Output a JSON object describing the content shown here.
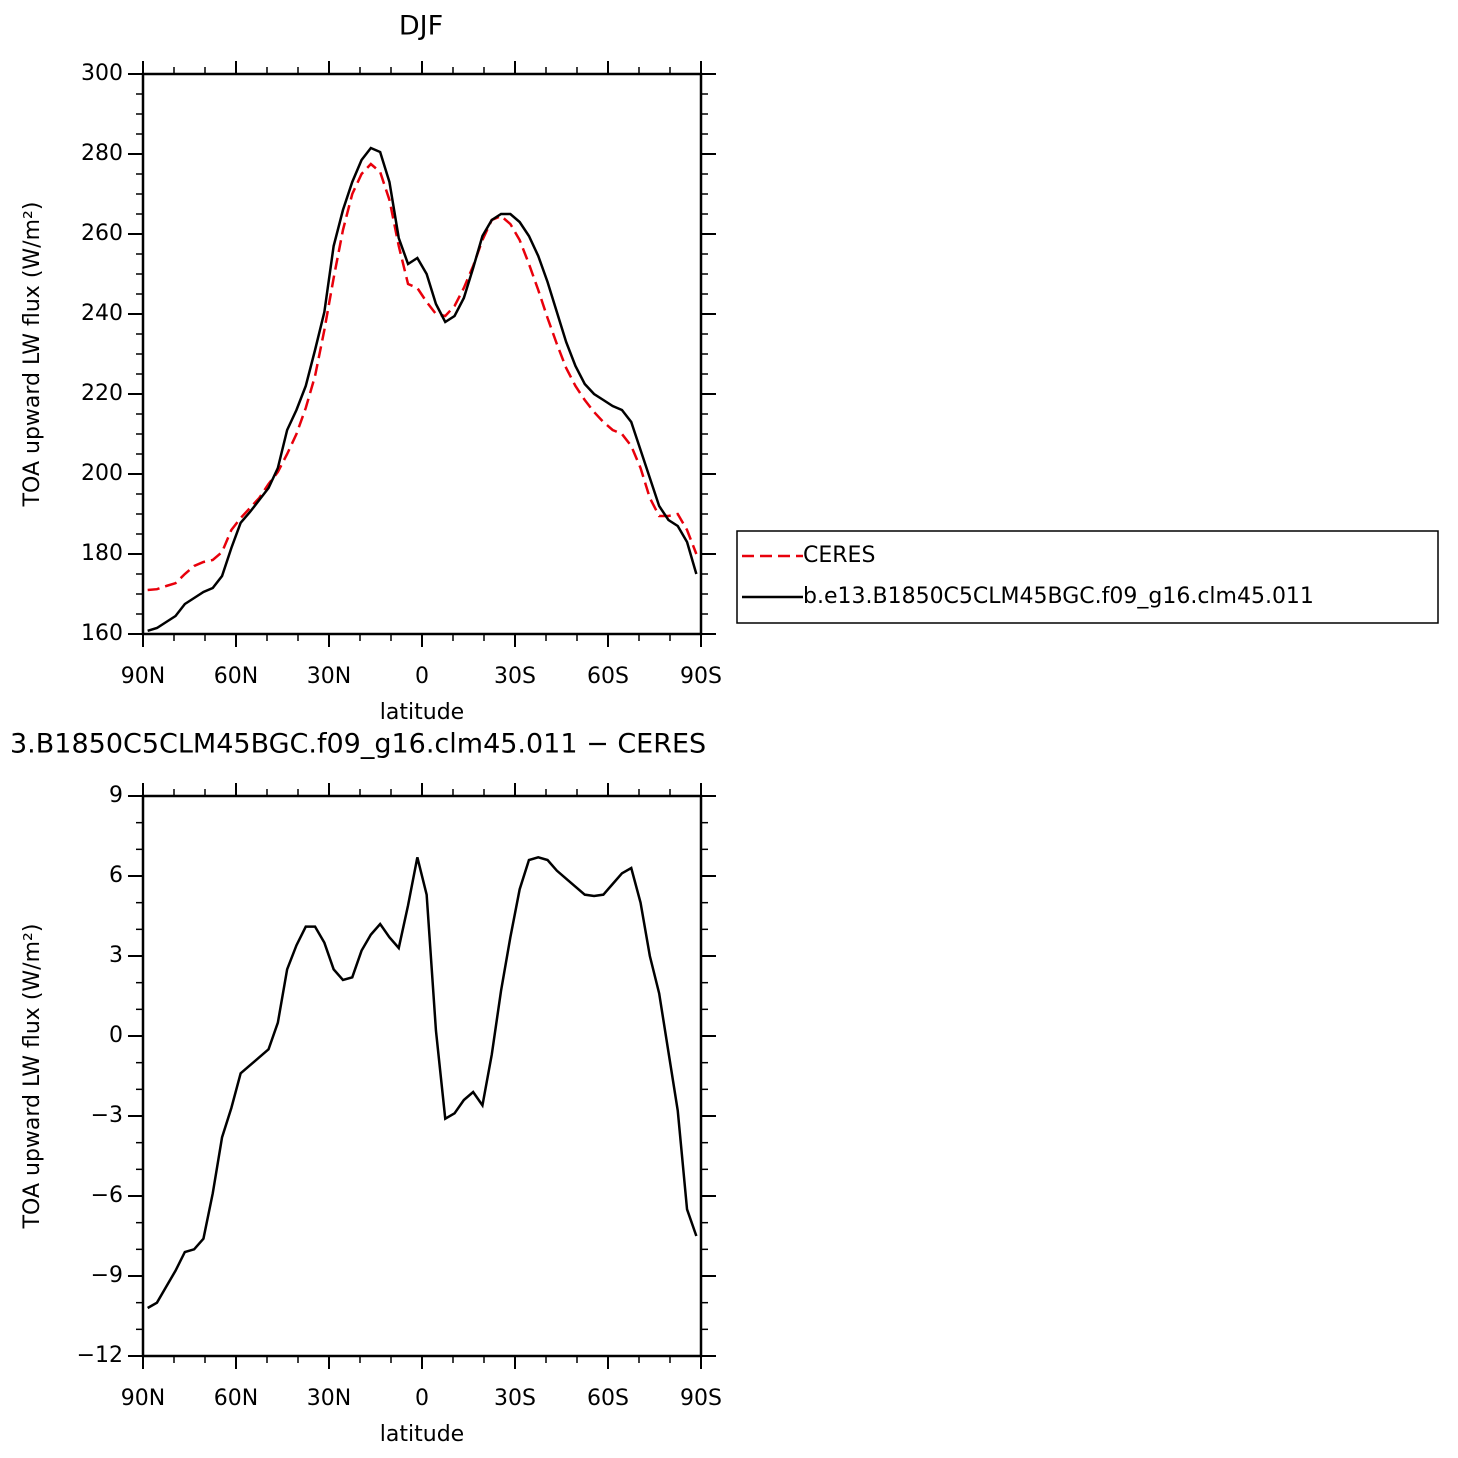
{
  "chart_data": [
    {
      "type": "line",
      "title": "DJF",
      "x": [
        88.5,
        85.5,
        82.5,
        79.5,
        76.5,
        73.5,
        70.5,
        67.5,
        64.5,
        61.5,
        58.5,
        55.5,
        52.5,
        49.5,
        46.5,
        43.5,
        40.5,
        37.5,
        34.5,
        31.5,
        28.5,
        25.5,
        22.5,
        19.5,
        16.5,
        13.5,
        10.5,
        7.5,
        4.5,
        1.5,
        -1.5,
        -4.5,
        -7.5,
        -10.5,
        -13.5,
        -16.5,
        -19.5,
        -22.5,
        -25.5,
        -28.5,
        -31.5,
        -34.5,
        -37.5,
        -40.5,
        -43.5,
        -46.5,
        -49.5,
        -52.5,
        -55.5,
        -58.5,
        -61.5,
        -64.5,
        -67.5,
        -70.5,
        -73.5,
        -76.5,
        -79.5,
        -82.5,
        -85.5,
        -88.5
      ],
      "xlim": [
        90,
        -90
      ],
      "xticks": [
        {
          "value": 90,
          "label": "90N"
        },
        {
          "value": 60,
          "label": "60N"
        },
        {
          "value": 30,
          "label": "30N"
        },
        0,
        {
          "value": -30,
          "label": "30S"
        },
        {
          "value": -60,
          "label": "60S"
        },
        {
          "value": -90,
          "label": "90S"
        }
      ],
      "xlabel": "latitude",
      "ylabel": "TOA upward LW flux (W/m²)",
      "ylim": [
        160,
        300
      ],
      "yticks": [
        160,
        180,
        200,
        220,
        240,
        260,
        280,
        300
      ],
      "legend": "outside right",
      "series": [
        {
          "name": "CERES",
          "color": "#e8000b",
          "linestyle": "dashed",
          "values": [
            171,
            171.2,
            172,
            172.7,
            175,
            177,
            178,
            178.5,
            180.5,
            186,
            189,
            191.5,
            194,
            197.5,
            200.5,
            205,
            210,
            216.5,
            224.5,
            236,
            249,
            261,
            270,
            275,
            277.5,
            275.5,
            268.5,
            257,
            247.5,
            246.5,
            243,
            240,
            239.5,
            242,
            246.5,
            252,
            258.5,
            263.5,
            264.5,
            262.5,
            258.5,
            252.5,
            246,
            239,
            232.5,
            226.5,
            222,
            218.5,
            215.5,
            213,
            211,
            210,
            207,
            201.5,
            194,
            189.5,
            189.5,
            190,
            186,
            180
          ]
        },
        {
          "name": "b.e13.B1850C5CLM45BGC.f09_g16.clm45.011",
          "color": "#000000",
          "linestyle": "solid",
          "values": [
            160.8,
            161.5,
            163,
            164.5,
            167.5,
            169,
            170.5,
            171.5,
            174.5,
            181.5,
            187.8,
            190.5,
            193.5,
            196.5,
            201.5,
            211,
            216,
            222,
            231,
            240.5,
            257,
            266,
            273,
            278.5,
            281.5,
            280.5,
            273,
            259,
            252.5,
            254,
            250,
            242.5,
            238,
            239.5,
            244,
            251.5,
            259.5,
            263.5,
            265,
            265,
            263,
            259.5,
            254.5,
            248,
            240.5,
            233,
            227,
            222.5,
            220,
            218.5,
            217,
            216,
            213,
            206,
            199,
            192,
            188.5,
            187,
            183,
            175
          ]
        }
      ]
    },
    {
      "type": "line",
      "title": "3.B1850C5CLM45BGC.f09_g16.clm45.011 − CERES",
      "x": [
        88.5,
        85.5,
        82.5,
        79.5,
        76.5,
        73.5,
        70.5,
        67.5,
        64.5,
        61.5,
        58.5,
        55.5,
        52.5,
        49.5,
        46.5,
        43.5,
        40.5,
        37.5,
        34.5,
        31.5,
        28.5,
        25.5,
        22.5,
        19.5,
        16.5,
        13.5,
        10.5,
        7.5,
        4.5,
        1.5,
        -1.5,
        -4.5,
        -7.5,
        -10.5,
        -13.5,
        -16.5,
        -19.5,
        -22.5,
        -25.5,
        -28.5,
        -31.5,
        -34.5,
        -37.5,
        -40.5,
        -43.5,
        -46.5,
        -49.5,
        -52.5,
        -55.5,
        -58.5,
        -61.5,
        -64.5,
        -67.5,
        -70.5,
        -73.5,
        -76.5,
        -79.5,
        -82.5,
        -85.5,
        -88.5
      ],
      "xlim": [
        90,
        -90
      ],
      "xticks": [
        {
          "value": 90,
          "label": "90N"
        },
        {
          "value": 60,
          "label": "60N"
        },
        {
          "value": 30,
          "label": "30N"
        },
        0,
        {
          "value": -30,
          "label": "30S"
        },
        {
          "value": -60,
          "label": "60S"
        },
        {
          "value": -90,
          "label": "90S"
        }
      ],
      "xlabel": "latitude",
      "ylabel": "TOA upward LW flux (W/m²)",
      "ylim": [
        -12,
        9
      ],
      "yticks": [
        {
          "value": -12,
          "label": "−12"
        },
        {
          "value": -9,
          "label": "−9"
        },
        {
          "value": -6,
          "label": "−6"
        },
        {
          "value": -3,
          "label": "−3"
        },
        0,
        3,
        6,
        9
      ],
      "series": [
        {
          "color": "#000000",
          "linestyle": "solid",
          "values": [
            -10.2,
            -10,
            -9.4,
            -8.8,
            -8.1,
            -8,
            -7.6,
            -5.9,
            -3.8,
            -2.7,
            -1.4,
            -1.1,
            -0.8,
            -0.5,
            0.5,
            2.5,
            3.4,
            4.1,
            4.1,
            3.5,
            2.5,
            2.1,
            2.2,
            3.2,
            3.8,
            4.2,
            3.7,
            3.3,
            4.9,
            6.7,
            5.3,
            0.2,
            -3.1,
            -2.9,
            -2.4,
            -2.1,
            -2.6,
            -0.7,
            1.7,
            3.7,
            5.5,
            6.6,
            6.7,
            6.6,
            6.2,
            5.9,
            5.6,
            5.3,
            5.25,
            5.3,
            5.7,
            6.1,
            6.3,
            5.0,
            3.0,
            1.6,
            -0.6,
            -2.8,
            -6.5,
            -7.5
          ]
        }
      ]
    }
  ]
}
